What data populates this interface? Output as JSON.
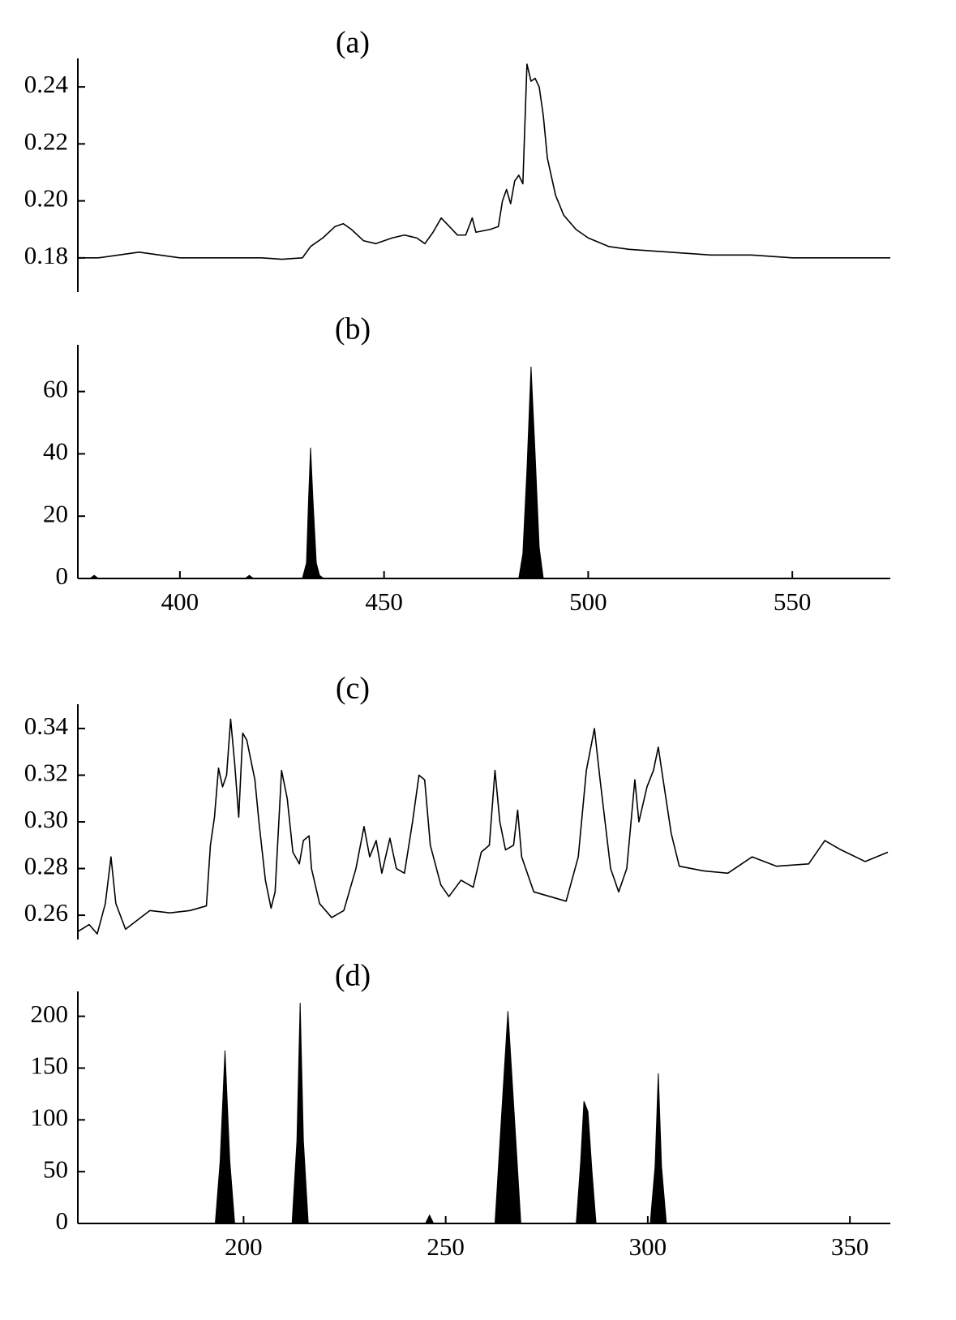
{
  "chart_data": [
    {
      "type": "line",
      "title": "(a)",
      "x": [
        375,
        380,
        385,
        390,
        395,
        400,
        410,
        420,
        425,
        430,
        432,
        435,
        438,
        440,
        442,
        445,
        448,
        452,
        455,
        458,
        460,
        462,
        464,
        466,
        468,
        470,
        471.6,
        472.5,
        476,
        478,
        479,
        480,
        481,
        482,
        483,
        484,
        485,
        486,
        487,
        488,
        489,
        490,
        492,
        494,
        497,
        500,
        505,
        510,
        520,
        530,
        540,
        550,
        560,
        574
      ],
      "values": [
        0.18,
        0.18,
        0.181,
        0.182,
        0.181,
        0.18,
        0.18,
        0.18,
        0.1795,
        0.18,
        0.184,
        0.187,
        0.191,
        0.192,
        0.19,
        0.186,
        0.185,
        0.187,
        0.188,
        0.187,
        0.185,
        0.189,
        0.194,
        0.191,
        0.188,
        0.188,
        0.194,
        0.189,
        0.19,
        0.191,
        0.2,
        0.204,
        0.199,
        0.207,
        0.209,
        0.206,
        0.248,
        0.242,
        0.243,
        0.24,
        0.23,
        0.215,
        0.202,
        0.195,
        0.19,
        0.187,
        0.184,
        0.183,
        0.182,
        0.181,
        0.181,
        0.18,
        0.18,
        0.18
      ],
      "xlim": [
        375,
        574
      ],
      "ylim": [
        0.168,
        0.25
      ],
      "yticks": [
        0.18,
        {
          "value": 0.2,
          "label": "0.20"
        },
        0.22,
        0.24
      ]
    },
    {
      "type": "area",
      "title": "(b)",
      "x": [
        375,
        378,
        379,
        380,
        416,
        417,
        418,
        430,
        431,
        431.5,
        432,
        432.6,
        433.4,
        434.2,
        435.2,
        483,
        484,
        485,
        486,
        487,
        488,
        489,
        574
      ],
      "values": [
        0,
        0,
        1,
        0,
        0,
        1,
        0,
        0,
        5,
        25,
        42,
        25,
        5,
        1,
        0,
        0,
        8,
        35,
        68,
        40,
        10,
        0,
        0
      ],
      "xlim": [
        375,
        574
      ],
      "ylim": [
        0,
        75
      ],
      "yticks": [
        0,
        20,
        40,
        60
      ],
      "xticks": [
        400,
        450,
        500,
        550
      ]
    },
    {
      "type": "line",
      "title": "(c)",
      "x": [
        159,
        161.8,
        163.8,
        165.8,
        167.2,
        168.4,
        170.8,
        173.8,
        176.8,
        181.8,
        186.8,
        190.8,
        191.8,
        192.8,
        193.8,
        194.8,
        195.8,
        196.8,
        197.8,
        198.8,
        199.8,
        200.8,
        202.8,
        203.8,
        205.4,
        206.8,
        207.8,
        209.4,
        210.8,
        212.2,
        213.8,
        214.8,
        216.2,
        216.8,
        218.8,
        221.8,
        224.8,
        227.8,
        229.8,
        231.2,
        232.8,
        234.2,
        236.2,
        237.8,
        239.8,
        241.8,
        243.4,
        244.8,
        246.2,
        248.8,
        250.8,
        253.8,
        256.8,
        258.8,
        260.8,
        262.2,
        263.4,
        264.8,
        266.8,
        267.8,
        268.8,
        271.8,
        275.8,
        279.8,
        282.8,
        284.8,
        286.8,
        288.2,
        290.8,
        292.8,
        294.8,
        296.8,
        297.8,
        299.8,
        301.4,
        302.6,
        303.8,
        305.8,
        307.8,
        313.8,
        319.8,
        325.8,
        331.8,
        339.8,
        343.8,
        347.8,
        353.8,
        359.4
      ],
      "values": [
        0.253,
        0.256,
        0.252,
        0.265,
        0.285,
        0.265,
        0.254,
        0.258,
        0.262,
        0.261,
        0.262,
        0.264,
        0.29,
        0.302,
        0.323,
        0.315,
        0.32,
        0.344,
        0.325,
        0.302,
        0.338,
        0.335,
        0.318,
        0.3,
        0.275,
        0.263,
        0.27,
        0.322,
        0.31,
        0.287,
        0.282,
        0.292,
        0.294,
        0.28,
        0.265,
        0.259,
        0.262,
        0.28,
        0.298,
        0.285,
        0.292,
        0.278,
        0.293,
        0.28,
        0.278,
        0.3,
        0.32,
        0.318,
        0.29,
        0.273,
        0.268,
        0.275,
        0.272,
        0.287,
        0.29,
        0.322,
        0.3,
        0.288,
        0.29,
        0.305,
        0.285,
        0.27,
        0.268,
        0.266,
        0.285,
        0.322,
        0.34,
        0.318,
        0.28,
        0.27,
        0.28,
        0.318,
        0.3,
        0.315,
        0.322,
        0.332,
        0.318,
        0.295,
        0.281,
        0.279,
        0.278,
        0.285,
        0.281,
        0.282,
        0.292,
        0.288,
        0.283,
        0.287
      ],
      "xlim": [
        159,
        360
      ],
      "ylim": [
        0.2496,
        0.3504
      ],
      "yticks": [
        0.26,
        0.28,
        {
          "value": 0.3,
          "label": "0.30"
        },
        0.32,
        0.34
      ]
    },
    {
      "type": "area",
      "title": "(d)",
      "x": [
        159,
        193,
        194.2,
        195.4,
        196.6,
        197.8,
        212,
        213.2,
        214,
        214.8,
        216,
        245,
        246,
        247,
        262.2,
        263.6,
        265.4,
        267.2,
        268.6,
        282.3,
        283.4,
        284.2,
        285.2,
        286.2,
        287.2,
        300.6,
        301.8,
        302.6,
        303.4,
        304.6,
        360
      ],
      "values": [
        0,
        0,
        60,
        167,
        60,
        0,
        0,
        80,
        213,
        80,
        0,
        0,
        8,
        0,
        0,
        90,
        205,
        90,
        0,
        0,
        60,
        118,
        108,
        50,
        0,
        0,
        55,
        145,
        55,
        0,
        0
      ],
      "xlim": [
        159,
        360
      ],
      "ylim": [
        0,
        224
      ],
      "yticks": [
        0,
        50,
        100,
        150,
        200
      ],
      "xticks": [
        200,
        250,
        300,
        350
      ]
    }
  ]
}
